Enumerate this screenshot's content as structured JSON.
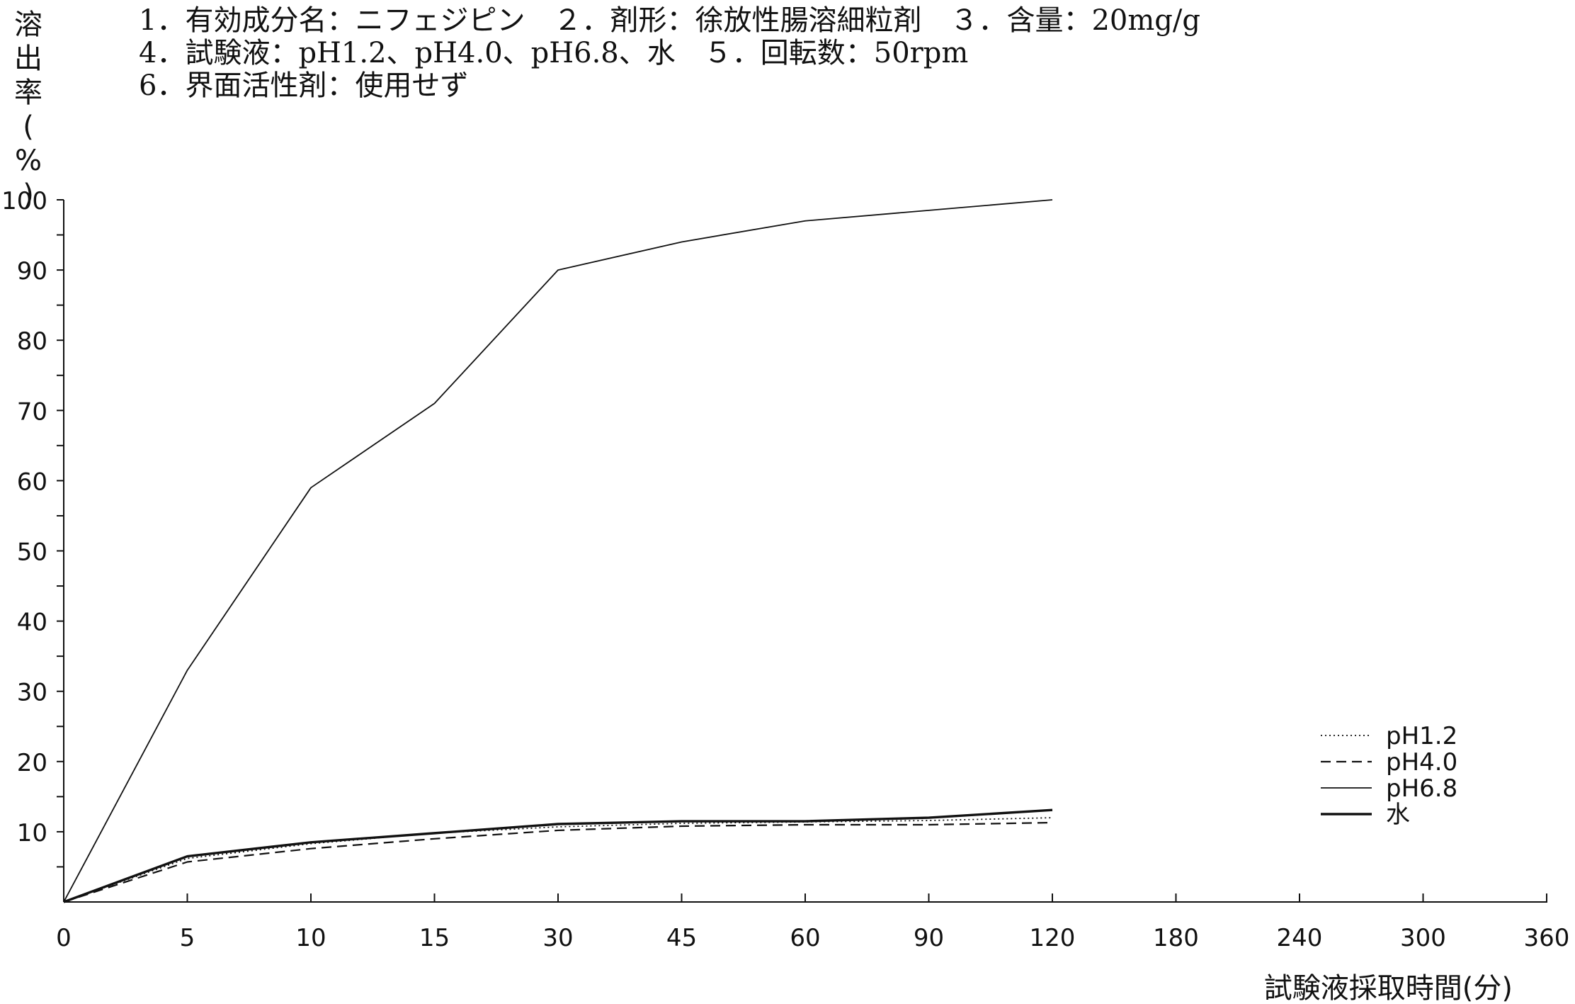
{
  "header": {
    "line1": "1．有効成分名：ニフェジピン　２．剤形：徐放性腸溶細粒剤　３．含量：20mg/g",
    "line2": "4．試験液：pH1.2、pH4.0、pH6.8、水　５．回転数：50rpm",
    "line3": "6．界面活性剤：使用せず"
  },
  "chart_data": {
    "type": "line",
    "title": "",
    "xlabel": "試験液採取時間(分)",
    "ylabel": "溶出率(%)",
    "x": [
      "0",
      "5",
      "10",
      "15",
      "30",
      "45",
      "60",
      "90",
      "120"
    ],
    "x_axis_ticks": [
      "0",
      "5",
      "10",
      "15",
      "30",
      "45",
      "60",
      "90",
      "120",
      "180",
      "240",
      "300",
      "360"
    ],
    "y_ticks": [
      "10",
      "20",
      "30",
      "40",
      "50",
      "60",
      "70",
      "80",
      "90",
      "100"
    ],
    "ylim": [
      0,
      100
    ],
    "grid": false,
    "legend_position": "lower-right",
    "series": [
      {
        "name": "pH1.2",
        "style": "dotted",
        "values": [
          0,
          6.2,
          8.3,
          9.8,
          10.7,
          11.2,
          11.4,
          11.6,
          12
        ]
      },
      {
        "name": "pH4.0",
        "style": "dashed",
        "values": [
          0,
          5.7,
          7.6,
          9.0,
          10.2,
          10.8,
          11.0,
          11.0,
          11.3
        ]
      },
      {
        "name": "pH6.8",
        "style": "thin",
        "values": [
          0,
          33,
          59,
          71,
          90,
          94,
          97,
          98.5,
          100
        ]
      },
      {
        "name": "水",
        "style": "thick",
        "values": [
          0,
          6.5,
          8.5,
          9.8,
          11.1,
          11.5,
          11.5,
          12,
          13.1
        ]
      }
    ]
  }
}
